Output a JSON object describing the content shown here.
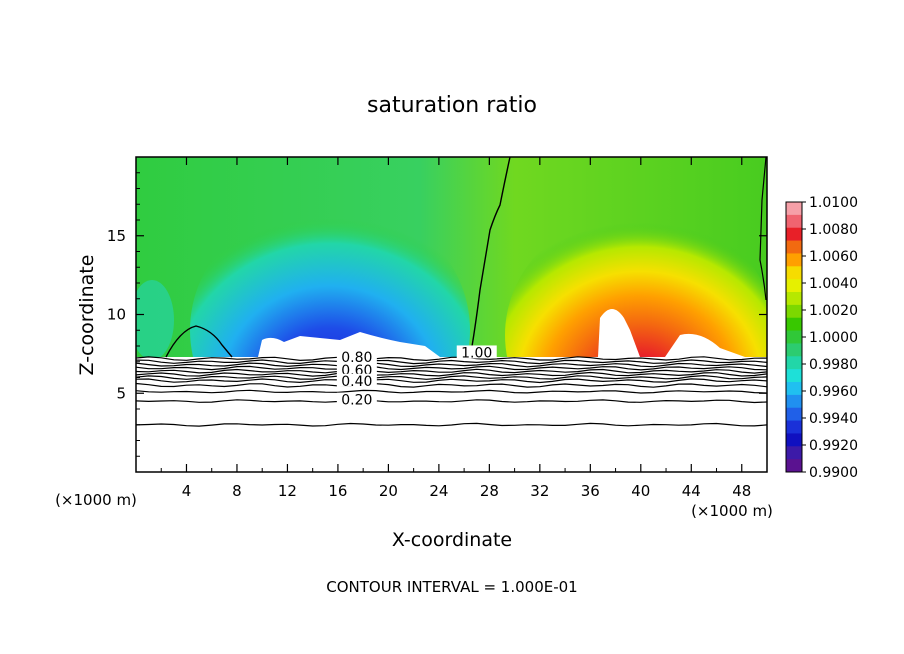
{
  "chart_data": {
    "type": "heatmap",
    "title": "saturation ratio",
    "xlabel": "X-coordinate",
    "ylabel": "Z-coordinate",
    "x_unit_left": "(×1000 m)",
    "x_unit_right": "(×1000 m)",
    "footer": "CONTOUR INTERVAL = 1.000E-01",
    "xlim": [
      0,
      50
    ],
    "ylim": [
      0,
      20
    ],
    "x_ticks": [
      4,
      8,
      12,
      16,
      20,
      24,
      28,
      32,
      36,
      40,
      44,
      48
    ],
    "y_ticks": [
      5,
      10,
      15
    ],
    "colorbar": {
      "levels": [
        "1.0100",
        "1.0080",
        "1.0060",
        "1.0040",
        "1.0020",
        "1.0000",
        "0.9980",
        "0.9960",
        "0.9940",
        "0.9920",
        "0.9900"
      ],
      "colors": [
        "#f6a0a8",
        "#f06470",
        "#e82028",
        "#f26a10",
        "#ffa000",
        "#f6dc00",
        "#e6f000",
        "#b6e800",
        "#7cd800",
        "#38c800",
        "#30c838",
        "#2ccc70",
        "#22d6a8",
        "#1ee0d8",
        "#20c0f0",
        "#2090f0",
        "#2060e8",
        "#1a30d8",
        "#1010c0",
        "#3c1aa8",
        "#5a1290"
      ]
    },
    "contour_labels": [
      {
        "text": "1.00",
        "x": 27.0,
        "y": 7.4
      },
      {
        "text": "0.80",
        "x": 17.5,
        "y": 7.1
      },
      {
        "text": "0.60",
        "x": 17.5,
        "y": 6.3
      },
      {
        "text": "0.40",
        "x": 17.5,
        "y": 5.6
      },
      {
        "text": "0.20",
        "x": 17.5,
        "y": 4.4
      }
    ],
    "notes": "Saturation ratio ~1.0 in mid/upper levels; blue subsaturated region x≈9-25 near z≈8-9, red/orange supersaturated dome x≈33-47 peaking near x≈38; white sub-threshold layer below z≈7.2 with stacked contours 0.2-0.9."
  }
}
